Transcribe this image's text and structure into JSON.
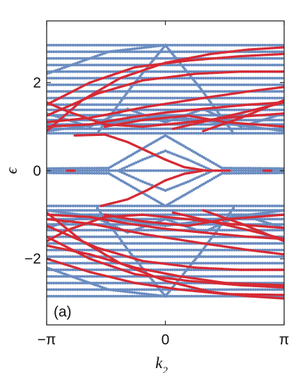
{
  "chart_data": {
    "type": "scatter",
    "panel_label": "(a)",
    "xlabel": "k",
    "xlabel_sub": "2",
    "ylabel": "ϵ",
    "xlim": [
      -3.14159,
      3.14159
    ],
    "ylim": [
      -3.5,
      3.4
    ],
    "x_ticks": [
      {
        "value": -3.14159,
        "label": "−π"
      },
      {
        "value": 0,
        "label": "0"
      },
      {
        "value": 3.14159,
        "label": "π"
      }
    ],
    "y_ticks": [
      {
        "value": -2,
        "label": "−2"
      },
      {
        "value": 0,
        "label": "0"
      },
      {
        "value": 2,
        "label": "2"
      }
    ],
    "grid": false,
    "colors": {
      "bulk": "#6a8cc0",
      "edge": "#d62a35",
      "frame": "#222222"
    },
    "series": [
      {
        "role": "bulk",
        "curves": [
          [
            [
              -3.14,
              2.85
            ],
            [
              3.14,
              2.85
            ]
          ],
          [
            [
              -3.14,
              2.7
            ],
            [
              3.14,
              2.7
            ]
          ],
          [
            [
              -3.14,
              2.55
            ],
            [
              3.14,
              2.55
            ]
          ],
          [
            [
              -3.14,
              2.4
            ],
            [
              3.14,
              2.4
            ]
          ],
          [
            [
              -3.14,
              2.25
            ],
            [
              3.14,
              2.25
            ]
          ],
          [
            [
              -3.14,
              2.1
            ],
            [
              3.14,
              2.1
            ]
          ],
          [
            [
              -3.14,
              1.95
            ],
            [
              3.14,
              1.95
            ]
          ],
          [
            [
              -3.14,
              1.8
            ],
            [
              3.14,
              1.8
            ]
          ],
          [
            [
              -3.14,
              1.65
            ],
            [
              3.14,
              1.65
            ]
          ],
          [
            [
              -3.14,
              1.5
            ],
            [
              3.14,
              1.5
            ]
          ],
          [
            [
              -3.14,
              1.38
            ],
            [
              3.14,
              1.38
            ]
          ],
          [
            [
              -3.14,
              1.26
            ],
            [
              3.14,
              1.26
            ]
          ],
          [
            [
              -3.14,
              1.15
            ],
            [
              3.14,
              1.15
            ]
          ],
          [
            [
              -3.14,
              1.05
            ],
            [
              3.14,
              1.05
            ]
          ],
          [
            [
              -3.14,
              0.95
            ],
            [
              3.14,
              0.95
            ]
          ],
          [
            [
              -3.14,
              0.85
            ],
            [
              3.14,
              0.85
            ]
          ],
          [
            [
              -3.14,
              -0.8
            ],
            [
              3.14,
              -0.8
            ]
          ],
          [
            [
              -3.14,
              -0.9
            ],
            [
              3.14,
              -0.9
            ]
          ],
          [
            [
              -3.14,
              -1.0
            ],
            [
              3.14,
              -1.0
            ]
          ],
          [
            [
              -3.14,
              -1.1
            ],
            [
              3.14,
              -1.1
            ]
          ],
          [
            [
              -3.14,
              -1.22
            ],
            [
              3.14,
              -1.22
            ]
          ],
          [
            [
              -3.14,
              -1.35
            ],
            [
              3.14,
              -1.35
            ]
          ],
          [
            [
              -3.14,
              -1.5
            ],
            [
              3.14,
              -1.5
            ]
          ],
          [
            [
              -3.14,
              -1.65
            ],
            [
              3.14,
              -1.65
            ]
          ],
          [
            [
              -3.14,
              -1.8
            ],
            [
              3.14,
              -1.8
            ]
          ],
          [
            [
              -3.14,
              -1.95
            ],
            [
              3.14,
              -1.95
            ]
          ],
          [
            [
              -3.14,
              -2.1
            ],
            [
              3.14,
              -2.1
            ]
          ],
          [
            [
              -3.14,
              -2.25
            ],
            [
              3.14,
              -2.25
            ]
          ],
          [
            [
              -3.14,
              -2.4
            ],
            [
              3.14,
              -2.4
            ]
          ],
          [
            [
              -3.14,
              -2.55
            ],
            [
              3.14,
              -2.55
            ]
          ],
          [
            [
              -3.14,
              -2.7
            ],
            [
              3.14,
              -2.7
            ]
          ],
          [
            [
              -3.14,
              -2.85
            ],
            [
              3.14,
              -2.85
            ]
          ],
          [
            [
              -3.14,
              0
            ],
            [
              3.14,
              0
            ]
          ],
          [
            [
              -3.14,
              0.05
            ],
            [
              -1.5,
              0.06
            ],
            [
              0,
              0.8
            ],
            [
              1.5,
              0.06
            ],
            [
              3.14,
              0.05
            ]
          ],
          [
            [
              -3.14,
              -0.05
            ],
            [
              -1.5,
              -0.06
            ],
            [
              0,
              -0.8
            ],
            [
              1.5,
              -0.06
            ],
            [
              3.14,
              -0.05
            ]
          ],
          [
            [
              -1.2,
              0.02
            ],
            [
              -0.6,
              0.25
            ],
            [
              0,
              0.45
            ],
            [
              0.6,
              0.25
            ],
            [
              1.2,
              0.02
            ]
          ],
          [
            [
              -1.2,
              -0.02
            ],
            [
              -0.6,
              -0.25
            ],
            [
              0,
              -0.45
            ],
            [
              0.6,
              -0.25
            ],
            [
              1.2,
              -0.02
            ]
          ],
          [
            [
              -1.8,
              0.85
            ],
            [
              -0.9,
              1.9
            ],
            [
              0,
              2.85
            ]
          ],
          [
            [
              0,
              2.85
            ],
            [
              0.9,
              1.9
            ],
            [
              1.8,
              0.85
            ]
          ],
          [
            [
              -1.8,
              -0.85
            ],
            [
              -0.9,
              -1.9
            ],
            [
              0,
              -2.85
            ]
          ],
          [
            [
              0,
              -2.85
            ],
            [
              0.9,
              -1.9
            ],
            [
              1.8,
              -0.85
            ]
          ],
          [
            [
              -3.14,
              2.2
            ],
            [
              -1.5,
              2.7
            ],
            [
              0,
              2.85
            ]
          ],
          [
            [
              -3.14,
              -2.2
            ],
            [
              -1.5,
              -2.7
            ],
            [
              0,
              -2.85
            ]
          ],
          [
            [
              -3.14,
              1.3
            ],
            [
              -2.0,
              1.0
            ],
            [
              -1.0,
              1.4
            ],
            [
              0,
              1.1
            ],
            [
              1.0,
              1.4
            ],
            [
              2.0,
              1.0
            ],
            [
              3.14,
              1.3
            ]
          ],
          [
            [
              -3.14,
              -1.3
            ],
            [
              -2.0,
              -1.0
            ],
            [
              -1.0,
              -1.4
            ],
            [
              0,
              -1.1
            ],
            [
              1.0,
              -1.4
            ],
            [
              2.0,
              -1.0
            ],
            [
              3.14,
              -1.3
            ]
          ],
          [
            [
              -3.14,
              0.9
            ],
            [
              0,
              1.25
            ],
            [
              3.14,
              0.9
            ]
          ],
          [
            [
              -3.14,
              -0.9
            ],
            [
              0,
              -1.25
            ],
            [
              3.14,
              -0.9
            ]
          ]
        ]
      },
      {
        "role": "edge",
        "curves": [
          [
            [
              -3.14,
              0.9
            ],
            [
              -2.2,
              1.6
            ],
            [
              -1.2,
              2.1
            ],
            [
              0,
              2.45
            ],
            [
              1.2,
              2.65
            ],
            [
              2.2,
              2.75
            ],
            [
              3.14,
              2.8
            ]
          ],
          [
            [
              -3.14,
              1.5
            ],
            [
              -2.0,
              2.0
            ],
            [
              -0.8,
              2.35
            ],
            [
              0.6,
              2.5
            ],
            [
              2.0,
              2.6
            ],
            [
              3.14,
              2.65
            ]
          ],
          [
            [
              -3.14,
              1.25
            ],
            [
              -1.8,
              1.75
            ],
            [
              -0.6,
              2.05
            ],
            [
              0.8,
              2.2
            ],
            [
              2.0,
              2.25
            ],
            [
              3.14,
              2.25
            ]
          ],
          [
            [
              -3.14,
              1.55
            ],
            [
              -2.6,
              1.35
            ],
            [
              -1.6,
              1.05
            ],
            [
              -0.6,
              1.0
            ],
            [
              0.6,
              1.1
            ],
            [
              1.6,
              1.2
            ],
            [
              3.14,
              1.3
            ]
          ],
          [
            [
              -3.14,
              1.1
            ],
            [
              -2.0,
              1.2
            ],
            [
              -0.5,
              1.45
            ],
            [
              1.0,
              1.65
            ],
            [
              2.2,
              1.8
            ],
            [
              3.14,
              1.9
            ]
          ],
          [
            [
              -3.14,
              1.0
            ],
            [
              -2.0,
              1.05
            ],
            [
              -1.0,
              1.2
            ],
            [
              0,
              1.32
            ],
            [
              1.2,
              1.42
            ],
            [
              2.2,
              1.5
            ],
            [
              3.14,
              1.55
            ]
          ],
          [
            [
              -1.6,
              1.0
            ],
            [
              -0.6,
              1.15
            ],
            [
              0.6,
              1.25
            ],
            [
              1.6,
              1.1
            ],
            [
              3.14,
              1.0
            ]
          ],
          [
            [
              0.2,
              0.95
            ],
            [
              1.2,
              1.15
            ],
            [
              2.2,
              1.35
            ],
            [
              3.14,
              1.55
            ]
          ],
          [
            [
              1.0,
              0.9
            ],
            [
              2.0,
              1.2
            ],
            [
              3.14,
              1.6
            ]
          ],
          [
            [
              -2.4,
              0.8
            ],
            [
              -1.6,
              0.82
            ],
            [
              -1.0,
              0.65
            ],
            [
              -0.5,
              0.45
            ],
            [
              0,
              0.25
            ],
            [
              0.5,
              0.08
            ],
            [
              1.1,
              0.0
            ],
            [
              1.7,
              0.0
            ]
          ],
          [
            [
              -2.6,
              0.0
            ],
            [
              -2.4,
              0.0
            ]
          ],
          [
            [
              2.6,
              0.0
            ],
            [
              2.8,
              0.0
            ]
          ],
          [
            [
              -3.14,
              -0.95
            ],
            [
              -2.2,
              -1.6
            ],
            [
              -1.2,
              -2.1
            ],
            [
              0,
              -2.5
            ],
            [
              1.2,
              -2.75
            ],
            [
              2.2,
              -2.85
            ],
            [
              3.14,
              -2.9
            ]
          ],
          [
            [
              -3.14,
              -1.5
            ],
            [
              -2.0,
              -2.0
            ],
            [
              -0.8,
              -2.35
            ],
            [
              0.6,
              -2.5
            ],
            [
              2.0,
              -2.6
            ],
            [
              3.14,
              -2.65
            ]
          ],
          [
            [
              -3.14,
              -1.25
            ],
            [
              -1.8,
              -1.75
            ],
            [
              -0.6,
              -2.05
            ],
            [
              0.8,
              -2.2
            ],
            [
              2.0,
              -2.25
            ],
            [
              3.14,
              -2.25
            ]
          ],
          [
            [
              -3.14,
              -1.6
            ],
            [
              -2.6,
              -1.35
            ],
            [
              -1.6,
              -1.05
            ],
            [
              -0.6,
              -1.0
            ],
            [
              0.6,
              -1.1
            ],
            [
              1.6,
              -1.2
            ],
            [
              3.14,
              -1.3
            ]
          ],
          [
            [
              -3.14,
              -1.1
            ],
            [
              -2.0,
              -1.2
            ],
            [
              -0.5,
              -1.45
            ],
            [
              1.0,
              -1.65
            ],
            [
              2.2,
              -1.8
            ],
            [
              3.14,
              -1.9
            ]
          ],
          [
            [
              -3.14,
              -1.0
            ],
            [
              -2.0,
              -1.05
            ],
            [
              -1.0,
              -1.2
            ],
            [
              0,
              -1.32
            ],
            [
              1.2,
              -1.42
            ],
            [
              2.2,
              -1.5
            ],
            [
              3.14,
              -1.55
            ]
          ],
          [
            [
              -1.6,
              -1.0
            ],
            [
              -0.6,
              -1.15
            ],
            [
              0.6,
              -1.25
            ],
            [
              1.6,
              -1.1
            ],
            [
              3.14,
              -1.0
            ]
          ],
          [
            [
              0.2,
              -0.95
            ],
            [
              1.2,
              -1.15
            ],
            [
              2.2,
              -1.35
            ],
            [
              3.14,
              -1.55
            ]
          ],
          [
            [
              1.0,
              -0.9
            ],
            [
              2.0,
              -1.2
            ],
            [
              3.14,
              -1.6
            ]
          ],
          [
            [
              -1.7,
              -0.8
            ],
            [
              -1.0,
              -0.65
            ],
            [
              -0.5,
              -0.45
            ],
            [
              0,
              -0.22
            ],
            [
              0.5,
              -0.07
            ],
            [
              1.0,
              0.0
            ]
          ],
          [
            [
              -3.14,
              -1.7
            ],
            [
              -2.0,
              -1.9
            ],
            [
              -0.8,
              -2.2
            ],
            [
              0.4,
              -2.4
            ],
            [
              1.6,
              -2.55
            ],
            [
              3.14,
              -2.6
            ]
          ],
          [
            [
              -3.14,
              -2.0
            ],
            [
              -2.0,
              -2.3
            ],
            [
              -0.8,
              -2.55
            ],
            [
              0.4,
              -2.7
            ],
            [
              1.6,
              -2.8
            ],
            [
              3.14,
              -2.82
            ]
          ]
        ]
      }
    ]
  }
}
